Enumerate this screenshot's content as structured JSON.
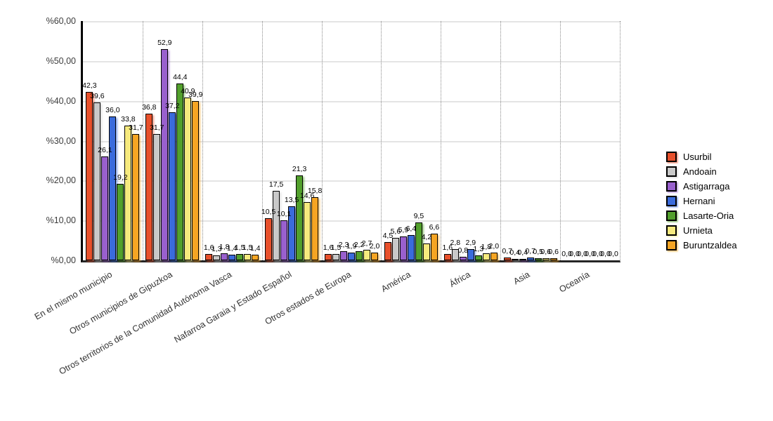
{
  "chart_data": {
    "type": "bar",
    "title": "",
    "xlabel": "",
    "ylabel": "",
    "y_axis": {
      "min": 0,
      "max": 60,
      "step": 10
    },
    "y_tick_labels": [
      "%60,00",
      "%50,00",
      "%40,00",
      "%30,00",
      "%20,00",
      "%10,00",
      "%0,00"
    ],
    "grid": true,
    "legend_position": "right",
    "value_label_format": "one decimal, comma separator",
    "categories": [
      "En el mismo municipio",
      "Otros municipios de Gipuzkoa",
      "Otros territorios de la Comunidad Autónoma Vasca",
      "Nafarroa Garaia y Estado Español",
      "Otros estados de Europa",
      "América",
      "África",
      "Asia",
      "Oceanía"
    ],
    "series": [
      {
        "name": "Usurbil",
        "color": "#E8502B",
        "values": [
          42.3,
          36.8,
          1.6,
          10.5,
          1.6,
          4.5,
          1.6,
          0.7,
          0.0
        ]
      },
      {
        "name": "Andoain",
        "color": "#C9C9C9",
        "values": [
          39.6,
          31.7,
          1.3,
          17.5,
          1.5,
          5.6,
          2.8,
          0.4,
          0.0
        ]
      },
      {
        "name": "Astigarraga",
        "color": "#9960CE",
        "values": [
          26.1,
          52.9,
          1.8,
          10.1,
          2.3,
          5.9,
          0.8,
          0.4,
          0.0
        ]
      },
      {
        "name": "Hernani",
        "color": "#3A6BDC",
        "values": [
          36.0,
          37.2,
          1.4,
          13.5,
          1.9,
          6.4,
          2.9,
          0.7,
          0.0
        ]
      },
      {
        "name": "Lasarte-Oria",
        "color": "#52A02C",
        "values": [
          19.2,
          44.4,
          1.5,
          21.3,
          2.2,
          9.5,
          1.3,
          0.5,
          0.0
        ]
      },
      {
        "name": "Urnieta",
        "color": "#F6EA7E",
        "values": [
          33.8,
          40.9,
          1.5,
          14.6,
          2.7,
          4.2,
          1.8,
          0.6,
          0.0
        ]
      },
      {
        "name": "Buruntzaldea",
        "color": "#F6A523",
        "values": [
          31.7,
          39.9,
          1.4,
          15.8,
          2.0,
          6.6,
          2.0,
          0.6,
          0.0
        ]
      }
    ]
  }
}
